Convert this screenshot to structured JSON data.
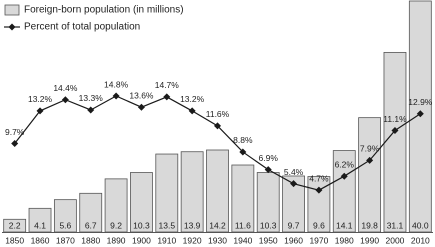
{
  "chart_data": {
    "type": "bar",
    "categories": [
      "1850",
      "1860",
      "1870",
      "1880",
      "1890",
      "1900",
      "1910",
      "1920",
      "1930",
      "1940",
      "1950",
      "1960",
      "1970",
      "1980",
      "1990",
      "2000",
      "2010"
    ],
    "series": [
      {
        "name": "Foreign-born population (in millions)",
        "type": "bar",
        "color": "#d9d9d9",
        "values": [
          2.2,
          4.1,
          5.6,
          6.7,
          9.2,
          10.3,
          13.5,
          13.9,
          14.2,
          11.6,
          10.3,
          9.7,
          9.6,
          14.1,
          19.8,
          31.1,
          40.0
        ],
        "value_labels": [
          "2.2",
          "4.1",
          "5.6",
          "6.7",
          "9.2",
          "10.3",
          "13.5",
          "13.9",
          "14.2",
          "11.6",
          "10.3",
          "9.7",
          "9.6",
          "14.1",
          "19.8",
          "31.1",
          "40.0"
        ]
      },
      {
        "name": "Percent of total population",
        "type": "line",
        "color": "#1a1a1a",
        "values": [
          9.7,
          13.2,
          14.4,
          13.3,
          14.8,
          13.6,
          14.7,
          13.2,
          11.6,
          8.8,
          6.9,
          5.4,
          4.7,
          6.2,
          7.9,
          11.1,
          12.9
        ],
        "value_labels": [
          "9.7%",
          "13.2%",
          "14.4%",
          "13.3%",
          "14.8%",
          "13.6%",
          "14.7%",
          "13.2%",
          "11.6%",
          "8.8%",
          "6.9%",
          "5.4%",
          "4.7%",
          "6.2%",
          "7.9%",
          "11.1%",
          "12.9%"
        ]
      }
    ]
  }
}
